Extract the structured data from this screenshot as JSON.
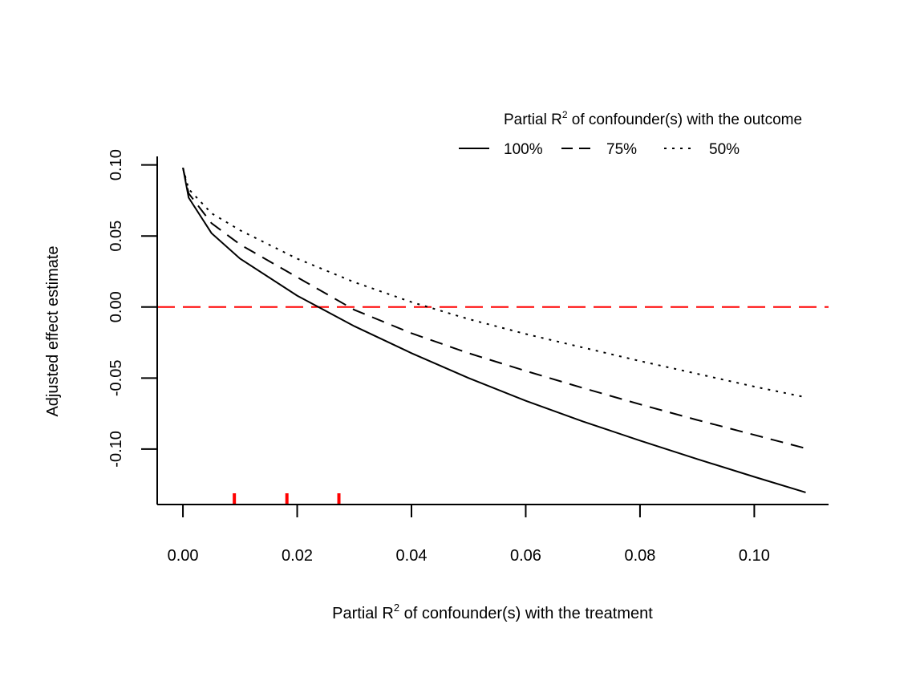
{
  "chart_data": {
    "type": "line",
    "xlabel": {
      "pre": "Partial R",
      "sup": "2",
      "post": " of confounder(s) with the treatment"
    },
    "ylabel": "Adjusted effect estimate",
    "xlim": [
      -0.0045,
      0.113
    ],
    "ylim": [
      -0.139,
      0.106
    ],
    "x_ticks": [
      0.0,
      0.02,
      0.04,
      0.06,
      0.08,
      0.1
    ],
    "x_tick_labels": [
      "0.00",
      "0.02",
      "0.04",
      "0.06",
      "0.08",
      "0.10"
    ],
    "y_ticks": [
      0.1,
      0.05,
      0.0,
      -0.05,
      -0.1
    ],
    "y_tick_labels": [
      "0.10",
      "0.05",
      "0.00",
      "-0.05",
      "-0.10"
    ],
    "grid": false,
    "legend": {
      "title": {
        "pre": "Partial R",
        "sup": "2",
        "post": " of confounder(s) with the outcome"
      },
      "placement": "top-right",
      "entries": [
        "100%",
        "75%",
        "50%"
      ]
    },
    "series": [
      {
        "name": "100%",
        "line_style": "solid",
        "color": "#000000",
        "x": [
          0.0,
          0.001,
          0.005,
          0.01,
          0.02,
          0.03,
          0.04,
          0.05,
          0.06,
          0.07,
          0.08,
          0.09,
          0.1,
          0.109
        ],
        "y": [
          0.098,
          0.077,
          0.052,
          0.034,
          0.008,
          -0.0135,
          -0.0325,
          -0.05,
          -0.066,
          -0.0805,
          -0.094,
          -0.107,
          -0.1195,
          -0.1305
        ]
      },
      {
        "name": "75%",
        "line_style": "dashed",
        "color": "#000000",
        "x": [
          0.0,
          0.001,
          0.005,
          0.01,
          0.02,
          0.03,
          0.04,
          0.05,
          0.06,
          0.07,
          0.08,
          0.09,
          0.1,
          0.109
        ],
        "y": [
          0.098,
          0.08,
          0.059,
          0.044,
          0.021,
          -0.002,
          -0.0185,
          -0.0325,
          -0.045,
          -0.057,
          -0.0685,
          -0.0795,
          -0.09,
          -0.0995
        ]
      },
      {
        "name": "50%",
        "line_style": "dotted",
        "color": "#000000",
        "x": [
          0.0,
          0.001,
          0.005,
          0.01,
          0.02,
          0.03,
          0.04,
          0.05,
          0.06,
          0.07,
          0.08,
          0.09,
          0.1,
          0.109
        ],
        "y": [
          0.098,
          0.083,
          0.066,
          0.054,
          0.034,
          0.0175,
          0.0035,
          -0.0085,
          -0.019,
          -0.0285,
          -0.038,
          -0.047,
          -0.056,
          -0.0635
        ]
      }
    ],
    "reference_line": {
      "y": 0.0,
      "color": "#ff0000",
      "line_style": "long-dashed"
    },
    "rug_marks": {
      "x": [
        0.009,
        0.0182,
        0.0273
      ],
      "color": "#ff0000"
    }
  }
}
